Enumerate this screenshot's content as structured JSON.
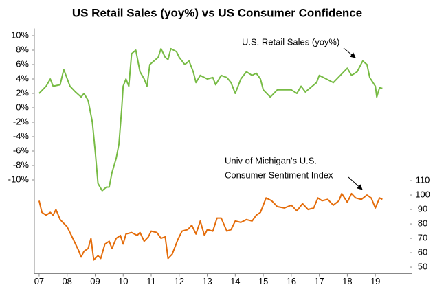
{
  "chart_data": {
    "type": "line",
    "title": "US Retail Sales (yoy%) vs US Consumer Confidence",
    "annotations": [
      "U.S. Retail Sales (yoy%)",
      "Univ of Michigan's U.S.",
      "Consumer Sentiment  Index"
    ],
    "xlim": [
      2006.83,
      2020.32
    ],
    "xticks": [
      {
        "value": 2007,
        "label": "07"
      },
      {
        "value": 2008,
        "label": "08"
      },
      {
        "value": 2009,
        "label": "09"
      },
      {
        "value": 2010,
        "label": "10"
      },
      {
        "value": 2011,
        "label": "11"
      },
      {
        "value": 2012,
        "label": "12"
      },
      {
        "value": 2013,
        "label": "13"
      },
      {
        "value": 2014,
        "label": "14"
      },
      {
        "value": 2015,
        "label": "15"
      },
      {
        "value": 2016,
        "label": "16"
      },
      {
        "value": 2017,
        "label": "17"
      },
      {
        "value": 2018,
        "label": "18"
      },
      {
        "value": 2019,
        "label": "19"
      }
    ],
    "ylim": [
      -23,
      11
    ],
    "yticks": [
      {
        "value": 10,
        "label": "10%"
      },
      {
        "value": 8,
        "label": "8%"
      },
      {
        "value": 6,
        "label": "6%"
      },
      {
        "value": 4,
        "label": "4%"
      },
      {
        "value": 2,
        "label": "2%"
      },
      {
        "value": 0,
        "label": "0%"
      },
      {
        "value": -2,
        "label": "-2%"
      },
      {
        "value": -4,
        "label": "-4%"
      },
      {
        "value": -6,
        "label": "-6%"
      },
      {
        "value": -8,
        "label": "-8%"
      },
      {
        "value": -10,
        "label": "-10%"
      }
    ],
    "y2lim": [
      45.5,
      215.5
    ],
    "y2ticks": [
      50,
      60,
      70,
      80,
      90,
      100,
      110
    ],
    "grid": false,
    "series": [
      {
        "color": "#77bb44",
        "x": [
          2007.0,
          2007.25,
          2007.4,
          2007.5,
          2007.75,
          2007.88,
          2008.1,
          2008.3,
          2008.5,
          2008.6,
          2008.75,
          2008.9,
          2009.0,
          2009.1,
          2009.25,
          2009.4,
          2009.5,
          2009.6,
          2009.75,
          2009.85,
          2009.95,
          2010.0,
          2010.1,
          2010.2,
          2010.3,
          2010.45,
          2010.6,
          2010.75,
          2010.85,
          2010.95,
          2011.1,
          2011.25,
          2011.35,
          2011.5,
          2011.6,
          2011.7,
          2011.9,
          2012.0,
          2012.2,
          2012.35,
          2012.5,
          2012.6,
          2012.75,
          2013.0,
          2013.2,
          2013.3,
          2013.5,
          2013.7,
          2013.85,
          2014.0,
          2014.2,
          2014.4,
          2014.6,
          2014.75,
          2014.9,
          2015.0,
          2015.25,
          2015.5,
          2015.75,
          2016.0,
          2016.2,
          2016.35,
          2016.5,
          2016.75,
          2016.9,
          2017.0,
          2017.25,
          2017.5,
          2017.75,
          2018.0,
          2018.15,
          2018.35,
          2018.55,
          2018.7,
          2018.8,
          2019.0,
          2019.05,
          2019.15,
          2019.25
        ],
        "values": [
          2,
          3,
          4,
          3,
          3.2,
          5.3,
          3,
          2.2,
          1.5,
          2,
          1,
          -2,
          -6,
          -10.5,
          -11.5,
          -11,
          -11,
          -9,
          -7,
          -5,
          0,
          3,
          4,
          3,
          7.5,
          8,
          5,
          4,
          3,
          6,
          6.5,
          7,
          8.2,
          7,
          6.7,
          8.2,
          7.8,
          7,
          6,
          6.5,
          5,
          3.5,
          4.5,
          4,
          4.2,
          3.2,
          4.5,
          4.2,
          3.5,
          2,
          4,
          5,
          4.5,
          4.8,
          4,
          2.5,
          1.5,
          2.5,
          2.5,
          2.5,
          2,
          3,
          2.2,
          3,
          3.5,
          4.5,
          4,
          3.5,
          4.5,
          5.5,
          4.5,
          5,
          6.5,
          6,
          4.2,
          3,
          1.5,
          2.8,
          2.7
        ]
      },
      {
        "color": "#e46c0a",
        "axis": "y2",
        "x": [
          2007.0,
          2007.1,
          2007.25,
          2007.4,
          2007.5,
          2007.6,
          2007.75,
          2007.9,
          2008.0,
          2008.2,
          2008.4,
          2008.5,
          2008.6,
          2008.75,
          2008.85,
          2008.95,
          2009.1,
          2009.2,
          2009.35,
          2009.5,
          2009.6,
          2009.75,
          2009.9,
          2010.0,
          2010.1,
          2010.3,
          2010.5,
          2010.6,
          2010.75,
          2010.9,
          2011.0,
          2011.2,
          2011.35,
          2011.5,
          2011.6,
          2011.75,
          2011.95,
          2012.1,
          2012.3,
          2012.45,
          2012.6,
          2012.75,
          2012.9,
          2013.0,
          2013.2,
          2013.35,
          2013.5,
          2013.7,
          2013.85,
          2014.0,
          2014.2,
          2014.4,
          2014.6,
          2014.75,
          2014.9,
          2015.0,
          2015.1,
          2015.3,
          2015.5,
          2015.75,
          2016.0,
          2016.2,
          2016.4,
          2016.6,
          2016.8,
          2016.95,
          2017.1,
          2017.3,
          2017.5,
          2017.7,
          2017.8,
          2018.0,
          2018.15,
          2018.3,
          2018.5,
          2018.7,
          2018.85,
          2019.0,
          2019.15,
          2019.25
        ],
        "values": [
          96,
          88,
          86,
          88,
          86,
          90,
          83,
          80,
          78,
          70,
          62,
          57,
          61,
          63,
          70,
          55,
          58,
          56,
          66,
          68,
          63,
          70,
          72,
          66,
          73,
          74,
          72,
          74,
          68,
          71,
          75,
          74,
          70,
          71,
          56,
          59,
          69,
          75,
          76,
          79,
          73,
          82,
          72,
          76,
          75,
          84,
          84,
          75,
          76,
          82,
          81,
          83,
          82,
          86,
          88,
          93,
          98,
          96,
          92,
          91,
          93,
          89,
          94,
          90,
          91,
          98,
          96,
          97,
          93,
          96,
          101,
          95,
          101,
          98,
          97,
          100,
          98,
          91,
          98,
          97
        ]
      }
    ]
  }
}
